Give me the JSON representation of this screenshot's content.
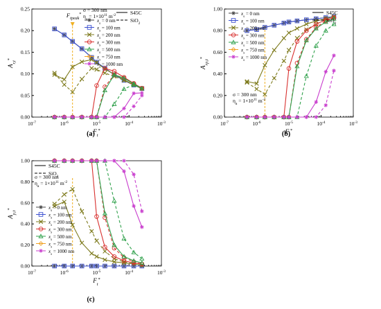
{
  "figure": {
    "panel_labels": [
      "(a)",
      "(b)",
      "(c)"
    ]
  },
  "chart_data": [
    {
      "type": "line",
      "panel": "(a)",
      "ylabel": "A_{r,t}*",
      "xlabel": "F_t*",
      "x_scale": "log",
      "xlim": [
        1e-07,
        0.001
      ],
      "ylim": [
        0,
        0.25
      ],
      "x_ticks": [
        "10-7",
        "10-6",
        "10-5",
        "10-4",
        "10-3"
      ],
      "y_ticks": [
        "0.00",
        "0.05",
        "0.10",
        "0.15",
        "0.20",
        "0.25"
      ],
      "annotation": "F_tpeak*",
      "annotation_x": 1.8e-06,
      "legend_text": {
        "linestyles": [
          "S45C",
          "SiO2"
        ],
        "params": [
          "σ = 300 nm",
          "η_a = 1×10^11 m^-2"
        ]
      },
      "x": [
        5e-07,
        1e-06,
        1.8e-06,
        3.5e-06,
        7e-06,
        1e-05,
        1.8e-05,
        3.5e-05,
        7e-05,
        0.00014,
        0.00025
      ],
      "series": [
        {
          "name": "x_s = 0 nm",
          "color": "#444444",
          "style": "solid",
          "marker": "star",
          "values": [
            0.204,
            0.19,
            0.175,
            0.158,
            0.138,
            0.127,
            0.113,
            0.098,
            0.085,
            0.074,
            0.066
          ]
        },
        {
          "name": "x_s = 100 nm",
          "color": "#3a4fd0",
          "style": "solid",
          "marker": "square",
          "values": [
            0.204,
            0.19,
            0.175,
            0.158,
            0.138,
            0.127,
            0.113,
            0.098,
            0.085,
            0.074,
            0.066
          ]
        },
        {
          "name": "x_s = 200 nm",
          "color": "#7d7a1c",
          "style": "solid",
          "marker": "x",
          "values": [
            0.098,
            0.087,
            0.116,
            0.128,
            0.133,
            0.126,
            0.111,
            0.099,
            0.086,
            0.075,
            0.066
          ]
        },
        {
          "name": "x_s = 200 nm",
          "color": "#7d7a1c",
          "style": "dash",
          "marker": "x",
          "values": [
            0.102,
            0.075,
            0.058,
            0.088,
            0.113,
            0.11,
            0.102,
            0.094,
            0.085,
            0.074,
            0.066
          ]
        },
        {
          "name": "x_s = 300 nm",
          "color": "#d8302e",
          "style": "solid",
          "marker": "circle",
          "values": [
            0,
            0,
            0,
            0,
            0,
            0.073,
            0.113,
            0.106,
            0.092,
            0.078,
            0.067
          ]
        },
        {
          "name": "x_s = 300 nm",
          "color": "#d8302e",
          "style": "dash",
          "marker": "circle",
          "values": [
            0,
            0,
            0,
            0,
            0,
            0,
            0.07,
            0.098,
            0.09,
            0.077,
            0.066
          ]
        },
        {
          "name": "x_s = 500 nm",
          "color": "#2ea04a",
          "style": "solid",
          "marker": "triangle",
          "values": [
            0,
            0,
            0,
            0,
            0,
            0,
            0.062,
            0.098,
            0.09,
            0.077,
            0.066
          ]
        },
        {
          "name": "x_s = 500 nm",
          "color": "#2ea04a",
          "style": "dash",
          "marker": "triangle",
          "values": [
            0,
            0,
            0,
            0,
            0,
            0,
            0,
            0.03,
            0.065,
            0.075,
            0.066
          ]
        },
        {
          "name": "x_s = 1000 nm",
          "color": "#c83ccd",
          "style": "solid",
          "marker": "star",
          "values": [
            0,
            0,
            0,
            0,
            0,
            0,
            0,
            0,
            0.02,
            0.055,
            0.056
          ]
        },
        {
          "name": "x_s = 1000 nm",
          "color": "#c83ccd",
          "style": "dash",
          "marker": "star",
          "values": [
            0,
            0,
            0,
            0,
            0,
            0,
            0,
            0,
            0,
            0.025,
            0.05
          ]
        }
      ],
      "legend": [
        {
          "name": "x_s = 0 nm",
          "color": "#444444",
          "marker": "star"
        },
        {
          "name": "x_s = 100 nm",
          "color": "#3a4fd0",
          "marker": "square"
        },
        {
          "name": "x_s = 200 nm",
          "color": "#7d7a1c",
          "marker": "x"
        },
        {
          "name": "x_s = 300 nm",
          "color": "#d8302e",
          "marker": "circle"
        },
        {
          "name": "x_s = 500 nm",
          "color": "#2ea04a",
          "marker": "triangle"
        },
        {
          "name": "x_s = 750 nm",
          "color": "#f0a020",
          "marker": "diamond"
        },
        {
          "name": "x_s = 1000 nm",
          "color": "#c83ccd",
          "marker": "star"
        }
      ]
    },
    {
      "type": "line",
      "panel": "(b)",
      "ylabel": "A_{rp,t}*",
      "xlabel": "F_t*",
      "x_scale": "log",
      "xlim": [
        1e-07,
        0.001
      ],
      "ylim": [
        0,
        1.0
      ],
      "x_ticks": [
        "10-7",
        "10-6",
        "10-5",
        "10-4",
        "10-3"
      ],
      "y_ticks": [
        "0.00",
        "0.20",
        "0.40",
        "0.60",
        "0.80",
        "1.00"
      ],
      "annotation_x": 1.8e-06,
      "legend_text": {
        "linestyles": [
          "S45C",
          "SiO2"
        ],
        "params": [
          "σ = 300 nm",
          "η_a = 1×10^11 m^-2"
        ]
      },
      "x": [
        5e-07,
        1e-06,
        1.8e-06,
        3.5e-06,
        7e-06,
        1e-05,
        1.8e-05,
        3.5e-05,
        7e-05,
        0.00014,
        0.00025
      ],
      "series": [
        {
          "name": "x_s = 0 nm",
          "color": "#444444",
          "style": "solid",
          "marker": "star",
          "values": [
            0.8,
            0.81,
            0.83,
            0.85,
            0.87,
            0.88,
            0.89,
            0.9,
            0.91,
            0.92,
            0.93
          ]
        },
        {
          "name": "x_s = 100 nm",
          "color": "#3a4fd0",
          "style": "solid",
          "marker": "square",
          "values": [
            0.8,
            0.81,
            0.83,
            0.85,
            0.87,
            0.88,
            0.89,
            0.9,
            0.91,
            0.92,
            0.93
          ]
        },
        {
          "name": "x_s = 200 nm",
          "color": "#7d7a1c",
          "style": "solid",
          "marker": "x",
          "values": [
            0.33,
            0.31,
            0.48,
            0.62,
            0.73,
            0.78,
            0.82,
            0.86,
            0.89,
            0.91,
            0.93
          ]
        },
        {
          "name": "x_s = 200 nm",
          "color": "#7d7a1c",
          "style": "dash",
          "marker": "x",
          "values": [
            0.32,
            0.26,
            0.21,
            0.36,
            0.52,
            0.62,
            0.73,
            0.81,
            0.86,
            0.9,
            0.92
          ]
        },
        {
          "name": "x_s = 300 nm",
          "color": "#d8302e",
          "style": "solid",
          "marker": "circle",
          "values": [
            0,
            0,
            0,
            0,
            0,
            0.45,
            0.7,
            0.8,
            0.86,
            0.9,
            0.92
          ]
        },
        {
          "name": "x_s = 300 nm",
          "color": "#d8302e",
          "style": "dash",
          "marker": "circle",
          "values": [
            0,
            0,
            0,
            0,
            0,
            0,
            0.5,
            0.72,
            0.83,
            0.89,
            0.92
          ]
        },
        {
          "name": "x_s = 500 nm",
          "color": "#2ea04a",
          "style": "solid",
          "marker": "triangle",
          "values": [
            0,
            0,
            0,
            0,
            0,
            0,
            0.47,
            0.71,
            0.82,
            0.88,
            0.91
          ]
        },
        {
          "name": "x_s = 500 nm",
          "color": "#2ea04a",
          "style": "dash",
          "marker": "triangle",
          "values": [
            0,
            0,
            0,
            0,
            0,
            0,
            0,
            0.38,
            0.66,
            0.8,
            0.86
          ]
        },
        {
          "name": "x_s = 1000 nm",
          "color": "#c83ccd",
          "style": "solid",
          "marker": "star",
          "values": [
            0,
            0,
            0,
            0,
            0,
            0,
            0,
            0,
            0.14,
            0.42,
            0.57
          ]
        },
        {
          "name": "x_s = 1000 nm",
          "color": "#c83ccd",
          "style": "dash",
          "marker": "star",
          "values": [
            0,
            0,
            0,
            0,
            0,
            0,
            0,
            0,
            0,
            0.11,
            0.43
          ]
        }
      ],
      "legend": [
        {
          "name": "x_s = 0 nm",
          "color": "#444444",
          "marker": "star"
        },
        {
          "name": "x_s = 100 nm",
          "color": "#3a4fd0",
          "marker": "square"
        },
        {
          "name": "x_s = 200 nm",
          "color": "#7d7a1c",
          "marker": "x"
        },
        {
          "name": "x_s = 300 nm",
          "color": "#d8302e",
          "marker": "circle"
        },
        {
          "name": "x_s = 500 nm",
          "color": "#2ea04a",
          "marker": "triangle"
        },
        {
          "name": "x_s = 750 nm",
          "color": "#f0a020",
          "marker": "diamond"
        },
        {
          "name": "x_s = 1000 nm",
          "color": "#c83ccd",
          "marker": "star"
        }
      ]
    },
    {
      "type": "line",
      "panel": "(c)",
      "ylabel": "A_{p,t}*",
      "xlabel": "F_t*",
      "x_scale": "log",
      "xlim": [
        1e-07,
        0.001
      ],
      "ylim": [
        0,
        1.0
      ],
      "x_ticks": [
        "10-7",
        "10-6",
        "10-5",
        "10-4",
        "10-3"
      ],
      "y_ticks": [
        "0.00",
        "0.20",
        "0.40",
        "0.60",
        "0.80",
        "1.00"
      ],
      "annotation_x": 1.8e-06,
      "legend_text": {
        "linestyles": [
          "S45C",
          "SiO2"
        ],
        "params": [
          "σ = 300 nm",
          "η_a = 1×10^11 m^-2"
        ]
      },
      "x": [
        5e-07,
        1e-06,
        1.8e-06,
        3.5e-06,
        7e-06,
        1e-05,
        1.8e-05,
        3.5e-05,
        7e-05,
        0.00014,
        0.00025
      ],
      "series": [
        {
          "name": "x_s = 0 nm",
          "color": "#444444",
          "style": "solid",
          "marker": "star",
          "values": [
            0,
            0,
            0,
            0,
            0,
            0,
            0,
            0,
            0,
            0,
            0
          ]
        },
        {
          "name": "x_s = 100 nm",
          "color": "#3a4fd0",
          "style": "solid",
          "marker": "square",
          "values": [
            0,
            0,
            0,
            0,
            0,
            0,
            0,
            0,
            0,
            0,
            0
          ]
        },
        {
          "name": "x_s = 200 nm",
          "color": "#7d7a1c",
          "style": "solid",
          "marker": "x",
          "values": [
            0.57,
            0.61,
            0.39,
            0.22,
            0.12,
            0.09,
            0.06,
            0.04,
            0.03,
            0.02,
            0.01
          ]
        },
        {
          "name": "x_s = 200 nm",
          "color": "#7d7a1c",
          "style": "dash",
          "marker": "x",
          "values": [
            0.59,
            0.68,
            0.73,
            0.52,
            0.33,
            0.24,
            0.14,
            0.07,
            0.04,
            0.02,
            0.01
          ]
        },
        {
          "name": "x_s = 300 nm",
          "color": "#d8302e",
          "style": "solid",
          "marker": "circle",
          "values": [
            1,
            1,
            1,
            1,
            1,
            0.47,
            0.18,
            0.09,
            0.05,
            0.03,
            0.02
          ]
        },
        {
          "name": "x_s = 300 nm",
          "color": "#d8302e",
          "style": "dash",
          "marker": "circle",
          "values": [
            1,
            1,
            1,
            1,
            1,
            1,
            0.46,
            0.17,
            0.08,
            0.04,
            0.02
          ]
        },
        {
          "name": "x_s = 500 nm",
          "color": "#2ea04a",
          "style": "solid",
          "marker": "triangle",
          "values": [
            1,
            1,
            1,
            1,
            1,
            1,
            0.5,
            0.2,
            0.09,
            0.05,
            0.03
          ]
        },
        {
          "name": "x_s = 500 nm",
          "color": "#2ea04a",
          "style": "dash",
          "marker": "triangle",
          "values": [
            1,
            1,
            1,
            1,
            1,
            1,
            1,
            0.62,
            0.26,
            0.13,
            0.07
          ]
        },
        {
          "name": "x_s = 1000 nm",
          "color": "#c83ccd",
          "style": "solid",
          "marker": "star",
          "values": [
            1,
            1,
            1,
            1,
            1,
            1,
            1,
            1,
            0.9,
            0.57,
            0.37
          ]
        },
        {
          "name": "x_s = 1000 nm",
          "color": "#c83ccd",
          "style": "dash",
          "marker": "star",
          "values": [
            1,
            1,
            1,
            1,
            1,
            1,
            1,
            1,
            1,
            0.87,
            0.52
          ]
        }
      ],
      "legend": [
        {
          "name": "x_s = 0 nm",
          "color": "#444444",
          "marker": "star"
        },
        {
          "name": "x_s = 100 nm",
          "color": "#3a4fd0",
          "marker": "square"
        },
        {
          "name": "x_s = 200 nm",
          "color": "#7d7a1c",
          "marker": "x"
        },
        {
          "name": "x_s = 300 nm",
          "color": "#d8302e",
          "marker": "circle"
        },
        {
          "name": "x_s = 500 nm",
          "color": "#2ea04a",
          "marker": "triangle"
        },
        {
          "name": "x_s = 750 nm",
          "color": "#f0a020",
          "marker": "diamond"
        },
        {
          "name": "x_s = 1000 nm",
          "color": "#c83ccd",
          "marker": "star"
        }
      ]
    }
  ]
}
